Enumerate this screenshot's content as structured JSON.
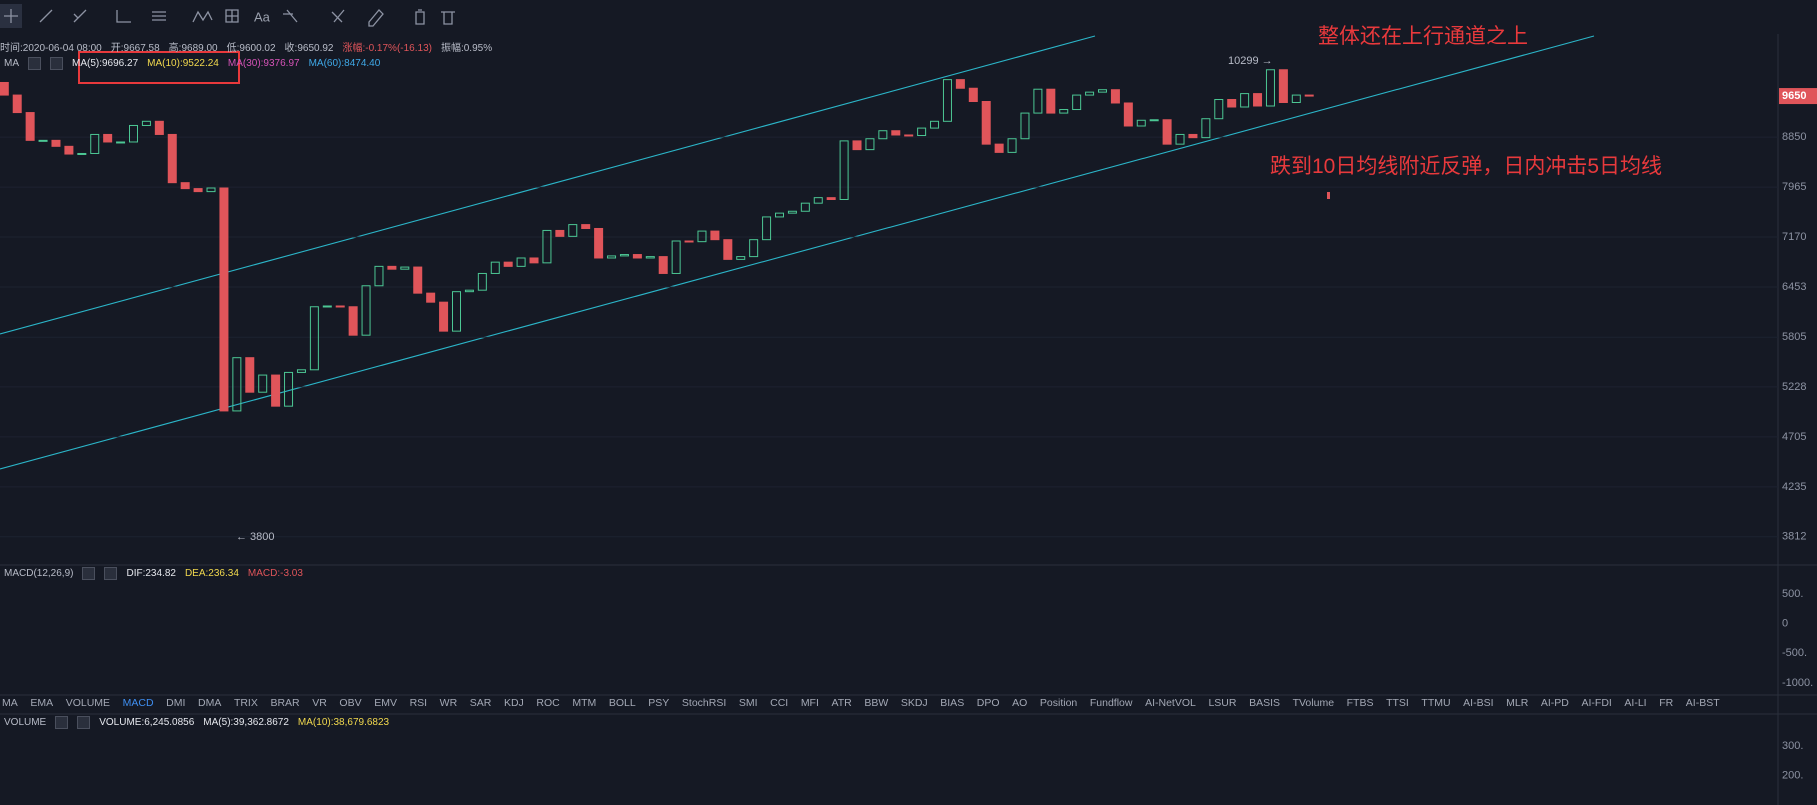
{
  "toolbar": {
    "font_label": "Aa"
  },
  "info": [
    "时间:2020-06-04 08:00",
    "开:9667.58",
    "高:9689.00",
    "低:9600.02",
    "收:9650.92",
    "涨幅:-0.17%(-16.13)",
    "振幅:0.95%"
  ],
  "ma_legend": {
    "name": "MA",
    "items": [
      "MA(5):9696.27",
      "MA(10):9522.24",
      "MA(30):9376.97",
      "MA(60):8474.40"
    ]
  },
  "annotations": {
    "top": "整体还在上行通道之上",
    "middle": "跌到10日均线附近反弹，日内冲击5日均线",
    "high": "10299 →",
    "low": "← 3800"
  },
  "chart": {
    "log_scale": true,
    "up_color": "#4cc794",
    "down_color": "#e0555a",
    "ylim": [
      3592,
      10500
    ],
    "yticks": [
      3812,
      4235,
      4705,
      5228,
      5805,
      6453,
      7170,
      7965,
      8850
    ],
    "last_price": 9650,
    "first_open": 9930,
    "closes": [
      9670,
      9320,
      8790,
      8790,
      8680,
      8540,
      8550,
      8900,
      8760,
      8760,
      9070,
      9150,
      8900,
      8040,
      7940,
      7890,
      7950,
      4970,
      5560,
      5170,
      5360,
      5020,
      5390,
      5420,
      6190,
      6200,
      6190,
      5830,
      6470,
      6740,
      6700,
      6730,
      6370,
      6250,
      5880,
      6390,
      6410,
      6640,
      6800,
      6740,
      6860,
      6790,
      7270,
      7180,
      7360,
      7300,
      6860,
      6890,
      6910,
      6860,
      6880,
      6640,
      7110,
      7100,
      7260,
      7130,
      6840,
      6880,
      7130,
      7480,
      7540,
      7570,
      7700,
      7790,
      7760,
      8780,
      8620,
      8820,
      8970,
      8890,
      8880,
      9020,
      9150,
      9990,
      9810,
      9540,
      8720,
      8570,
      8820,
      9310,
      9790,
      9310,
      9380,
      9670,
      9730,
      9780,
      9510,
      9060,
      9170,
      9180,
      8720,
      8900,
      8840,
      9200,
      9580,
      9430,
      9700,
      9450,
      10200,
      9520,
      9670,
      9650
    ]
  },
  "macd_panel": {
    "legend": [
      "MACD(12,26,9)",
      "DIF:234.82",
      "DEA:236.34",
      "MACD:-3.03"
    ],
    "ylim": [
      -1202,
      988
    ],
    "yticks": [
      {
        "value": 500,
        "label": "500."
      },
      0.0,
      {
        "value": -500,
        "label": "-500."
      },
      {
        "value": -1000,
        "label": "-1000."
      }
    ]
  },
  "indicator_tabs": [
    "MA",
    "EMA",
    "VOLUME",
    "MACD",
    "DMI",
    "DMA",
    "TRIX",
    "BRAR",
    "VR",
    "OBV",
    "EMV",
    "RSI",
    "WR",
    "SAR",
    "KDJ",
    "ROC",
    "MTM",
    "BOLL",
    "PSY",
    "StochRSI",
    "SMI",
    "CCI",
    "MFI",
    "ATR",
    "BBW",
    "SKDJ",
    "BIAS",
    "DPO",
    "AO",
    "Position",
    "Fundflow",
    "AI-NetVOL",
    "LSUR",
    "BASIS",
    "TVolume",
    "FTBS",
    "TTSI",
    "TTMU",
    "AI-BSI",
    "MLR",
    "AI-PD",
    "AI-FDI",
    "AI-LI",
    "FR",
    "AI-BST"
  ],
  "active_tab": 3,
  "volume_panel": {
    "legend": [
      "VOLUME",
      "VOLUME:6,245.0856",
      "MA(5):39,362.8672",
      "MA(10):38,679.6823"
    ],
    "ylim": [
      100,
      410
    ],
    "yticks": [
      {
        "value": 300,
        "label": "300."
      },
      {
        "value": 200,
        "label": "200."
      }
    ]
  }
}
